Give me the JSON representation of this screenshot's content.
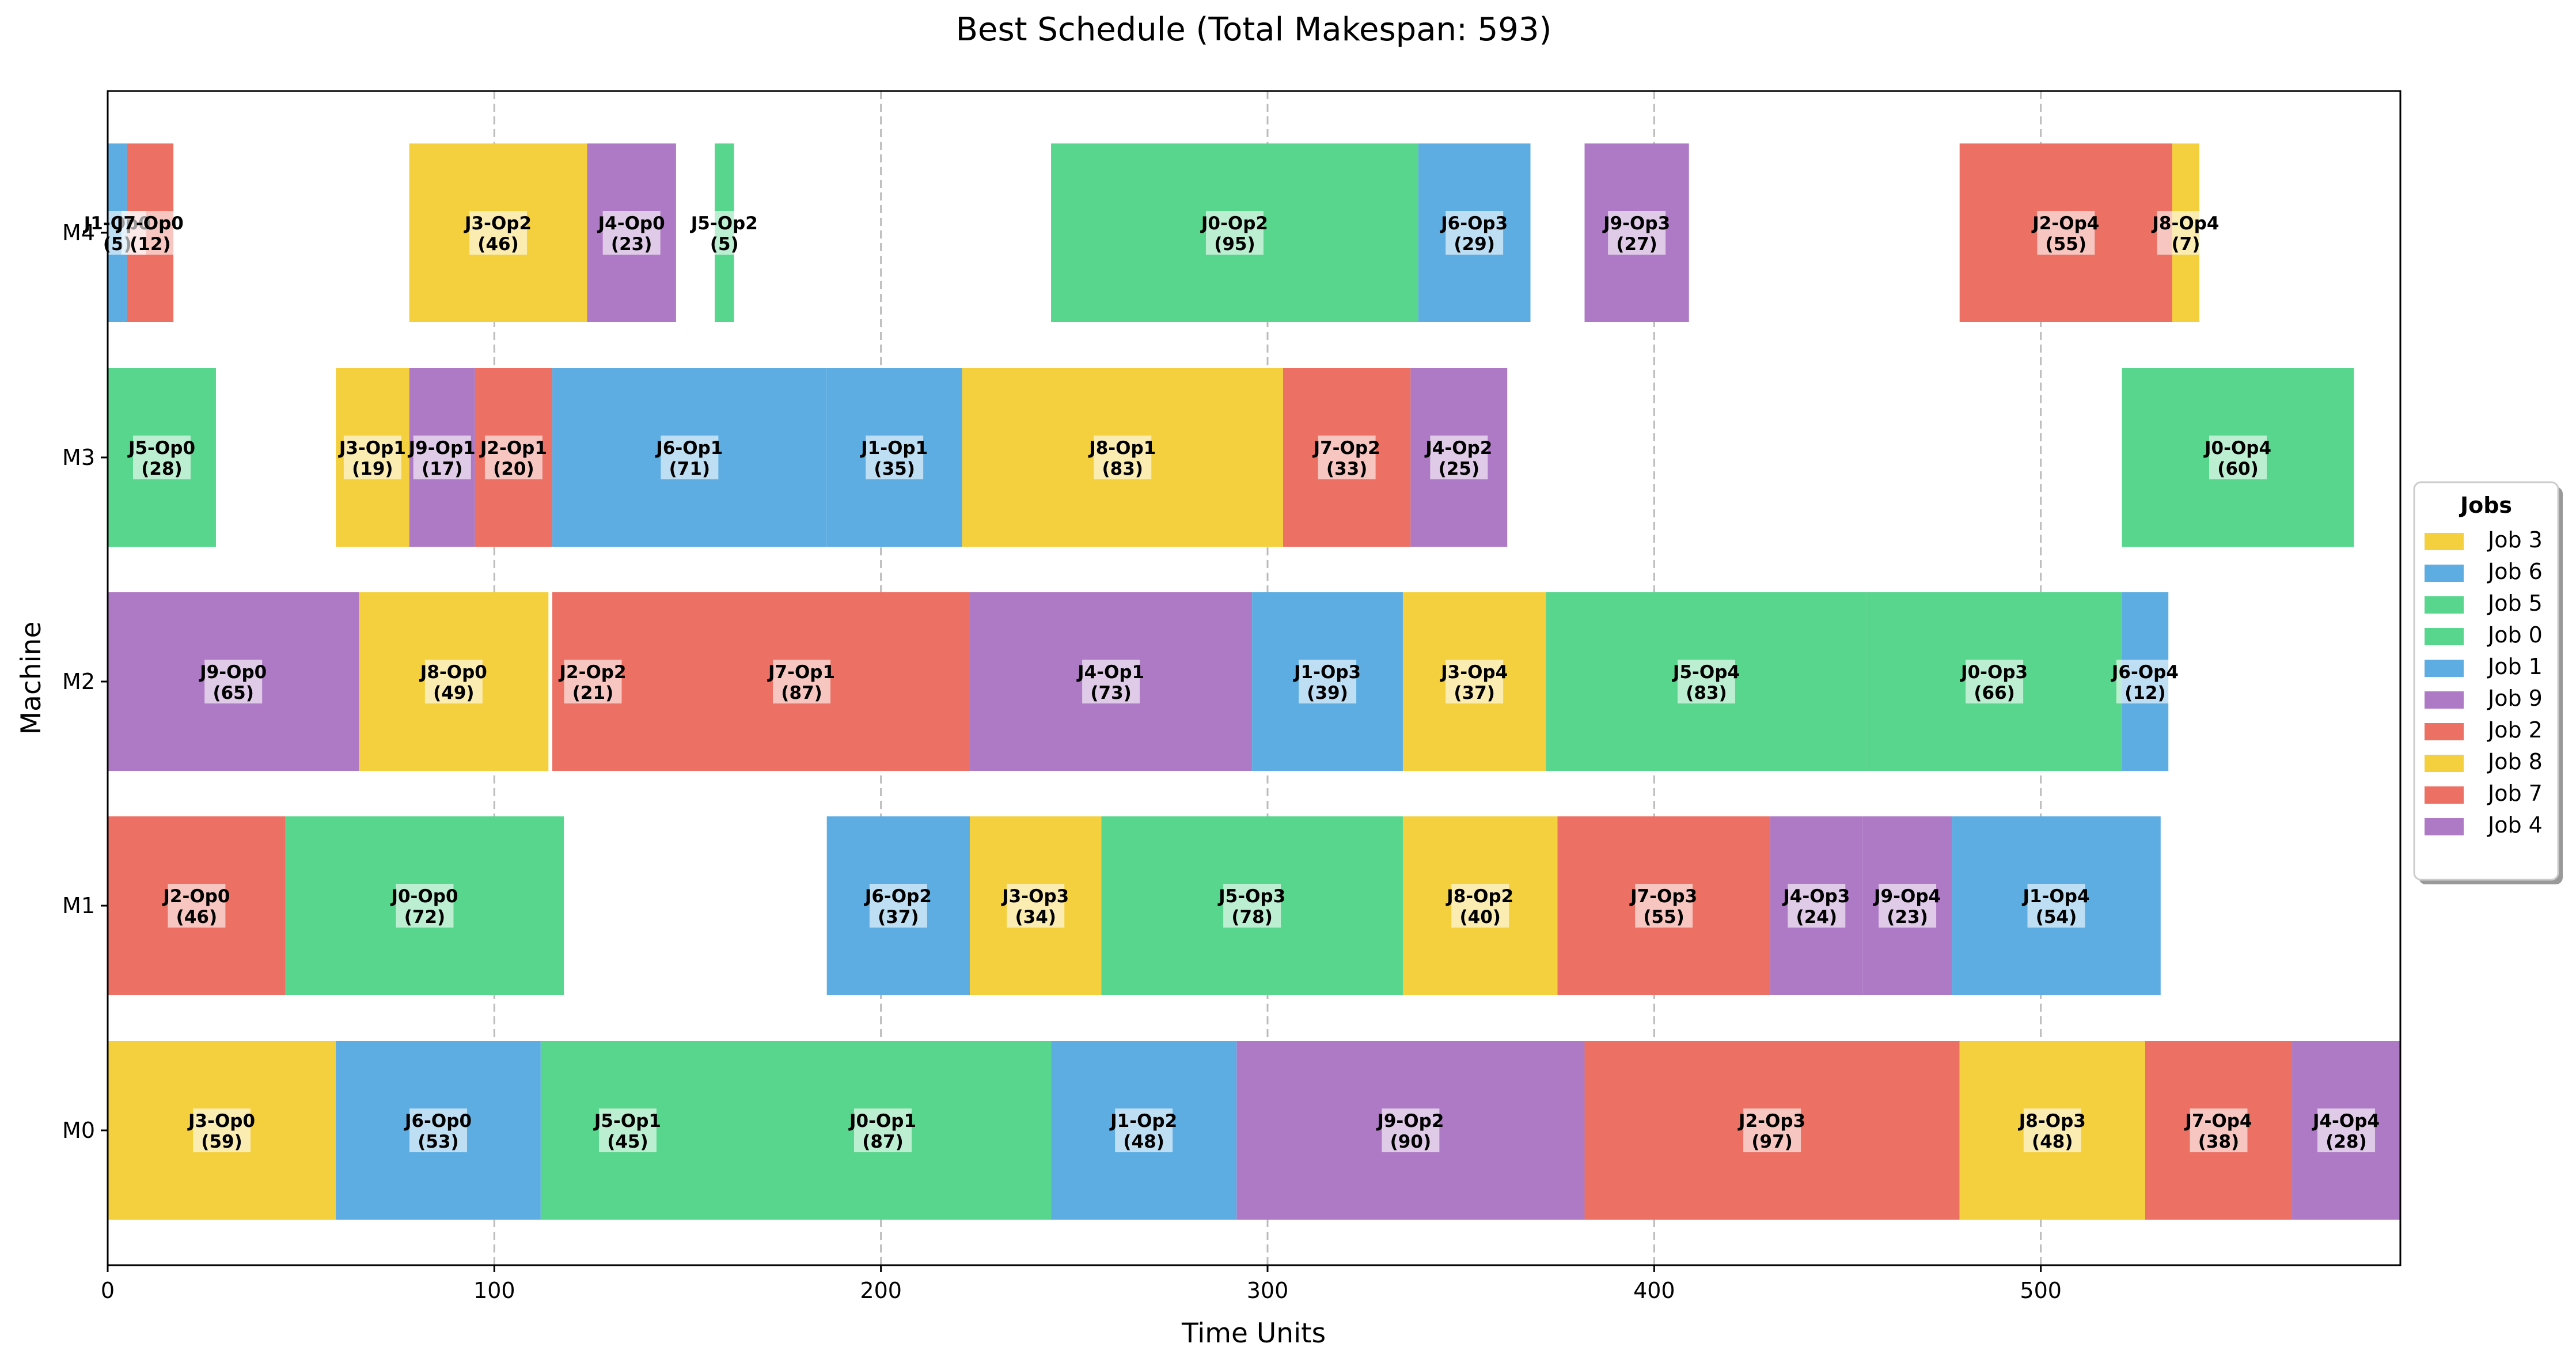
{
  "chart_data": {
    "type": "gantt",
    "title": "Best Schedule (Total Makespan: 593)",
    "xlabel": "Time Units",
    "ylabel": "Machine",
    "xlim": [
      0,
      593
    ],
    "xticks": [
      0,
      100,
      200,
      300,
      400,
      500
    ],
    "grid": "x-dashed",
    "machines": [
      "M0",
      "M1",
      "M2",
      "M3",
      "M4"
    ],
    "job_colors": {
      "0": "#58d68d",
      "1": "#5dade2",
      "2": "#ec7063",
      "3": "#f4d03f",
      "4": "#af7ac5",
      "5": "#58d68d",
      "6": "#5dade2",
      "7": "#ec7063",
      "8": "#f4d03f",
      "9": "#af7ac5"
    },
    "legend": {
      "title": "Jobs",
      "placement": "right",
      "entries": [
        {
          "label": "Job 3",
          "job": 3
        },
        {
          "label": "Job 6",
          "job": 6
        },
        {
          "label": "Job 5",
          "job": 5
        },
        {
          "label": "Job 0",
          "job": 0
        },
        {
          "label": "Job 1",
          "job": 1
        },
        {
          "label": "Job 9",
          "job": 9
        },
        {
          "label": "Job 2",
          "job": 2
        },
        {
          "label": "Job 8",
          "job": 8
        },
        {
          "label": "Job 7",
          "job": 7
        },
        {
          "label": "Job 4",
          "job": 4
        }
      ]
    },
    "operations": [
      {
        "machine": "M0",
        "job": 3,
        "label": "J3-Op0",
        "start": 0,
        "duration": 59
      },
      {
        "machine": "M0",
        "job": 6,
        "label": "J6-Op0",
        "start": 59,
        "duration": 53
      },
      {
        "machine": "M0",
        "job": 5,
        "label": "J5-Op1",
        "start": 112,
        "duration": 45
      },
      {
        "machine": "M0",
        "job": 0,
        "label": "J0-Op1",
        "start": 157,
        "duration": 87
      },
      {
        "machine": "M0",
        "job": 1,
        "label": "J1-Op2",
        "start": 244,
        "duration": 48
      },
      {
        "machine": "M0",
        "job": 9,
        "label": "J9-Op2",
        "start": 292,
        "duration": 90
      },
      {
        "machine": "M0",
        "job": 2,
        "label": "J2-Op3",
        "start": 382,
        "duration": 97
      },
      {
        "machine": "M0",
        "job": 8,
        "label": "J8-Op3",
        "start": 479,
        "duration": 48
      },
      {
        "machine": "M0",
        "job": 7,
        "label": "J7-Op4",
        "start": 527,
        "duration": 38
      },
      {
        "machine": "M0",
        "job": 4,
        "label": "J4-Op4",
        "start": 565,
        "duration": 28
      },
      {
        "machine": "M1",
        "job": 2,
        "label": "J2-Op0",
        "start": 0,
        "duration": 46
      },
      {
        "machine": "M1",
        "job": 0,
        "label": "J0-Op0",
        "start": 46,
        "duration": 72
      },
      {
        "machine": "M1",
        "job": 6,
        "label": "J6-Op2",
        "start": 186,
        "duration": 37
      },
      {
        "machine": "M1",
        "job": 3,
        "label": "J3-Op3",
        "start": 223,
        "duration": 34
      },
      {
        "machine": "M1",
        "job": 5,
        "label": "J5-Op3",
        "start": 257,
        "duration": 78
      },
      {
        "machine": "M1",
        "job": 8,
        "label": "J8-Op2",
        "start": 335,
        "duration": 40
      },
      {
        "machine": "M1",
        "job": 7,
        "label": "J7-Op3",
        "start": 375,
        "duration": 55
      },
      {
        "machine": "M1",
        "job": 4,
        "label": "J4-Op3",
        "start": 430,
        "duration": 24
      },
      {
        "machine": "M1",
        "job": 9,
        "label": "J9-Op4",
        "start": 454,
        "duration": 23
      },
      {
        "machine": "M1",
        "job": 1,
        "label": "J1-Op4",
        "start": 477,
        "duration": 54
      },
      {
        "machine": "M2",
        "job": 9,
        "label": "J9-Op0",
        "start": 0,
        "duration": 65
      },
      {
        "machine": "M2",
        "job": 8,
        "label": "J8-Op0",
        "start": 65,
        "duration": 49
      },
      {
        "machine": "M2",
        "job": 2,
        "label": "J2-Op2",
        "start": 115,
        "duration": 21
      },
      {
        "machine": "M2",
        "job": 7,
        "label": "J7-Op1",
        "start": 136,
        "duration": 87
      },
      {
        "machine": "M2",
        "job": 4,
        "label": "J4-Op1",
        "start": 223,
        "duration": 73
      },
      {
        "machine": "M2",
        "job": 1,
        "label": "J1-Op3",
        "start": 296,
        "duration": 39
      },
      {
        "machine": "M2",
        "job": 3,
        "label": "J3-Op4",
        "start": 335,
        "duration": 37
      },
      {
        "machine": "M2",
        "job": 5,
        "label": "J5-Op4",
        "start": 372,
        "duration": 83
      },
      {
        "machine": "M2",
        "job": 0,
        "label": "J0-Op3",
        "start": 455,
        "duration": 66
      },
      {
        "machine": "M2",
        "job": 6,
        "label": "J6-Op4",
        "start": 521,
        "duration": 12
      },
      {
        "machine": "M3",
        "job": 5,
        "label": "J5-Op0",
        "start": 0,
        "duration": 28
      },
      {
        "machine": "M3",
        "job": 3,
        "label": "J3-Op1",
        "start": 59,
        "duration": 19
      },
      {
        "machine": "M3",
        "job": 9,
        "label": "J9-Op1",
        "start": 78,
        "duration": 17
      },
      {
        "machine": "M3",
        "job": 2,
        "label": "J2-Op1",
        "start": 95,
        "duration": 20
      },
      {
        "machine": "M3",
        "job": 6,
        "label": "J6-Op1",
        "start": 115,
        "duration": 71
      },
      {
        "machine": "M3",
        "job": 1,
        "label": "J1-Op1",
        "start": 186,
        "duration": 35
      },
      {
        "machine": "M3",
        "job": 8,
        "label": "J8-Op1",
        "start": 221,
        "duration": 83
      },
      {
        "machine": "M3",
        "job": 7,
        "label": "J7-Op2",
        "start": 304,
        "duration": 33
      },
      {
        "machine": "M3",
        "job": 4,
        "label": "J4-Op2",
        "start": 337,
        "duration": 25
      },
      {
        "machine": "M3",
        "job": 0,
        "label": "J0-Op4",
        "start": 521,
        "duration": 60
      },
      {
        "machine": "M4",
        "job": 1,
        "label": "J1-Op0",
        "start": 0,
        "duration": 5
      },
      {
        "machine": "M4",
        "job": 7,
        "label": "J7-Op0",
        "start": 5,
        "duration": 12
      },
      {
        "machine": "M4",
        "job": 3,
        "label": "J3-Op2",
        "start": 78,
        "duration": 46
      },
      {
        "machine": "M4",
        "job": 4,
        "label": "J4-Op0",
        "start": 124,
        "duration": 23
      },
      {
        "machine": "M4",
        "job": 5,
        "label": "J5-Op2",
        "start": 157,
        "duration": 5
      },
      {
        "machine": "M4",
        "job": 0,
        "label": "J0-Op2",
        "start": 244,
        "duration": 95
      },
      {
        "machine": "M4",
        "job": 6,
        "label": "J6-Op3",
        "start": 339,
        "duration": 29
      },
      {
        "machine": "M4",
        "job": 9,
        "label": "J9-Op3",
        "start": 382,
        "duration": 27
      },
      {
        "machine": "M4",
        "job": 2,
        "label": "J2-Op4",
        "start": 479,
        "duration": 55
      },
      {
        "machine": "M4",
        "job": 8,
        "label": "J8-Op4",
        "start": 534,
        "duration": 7
      }
    ]
  }
}
